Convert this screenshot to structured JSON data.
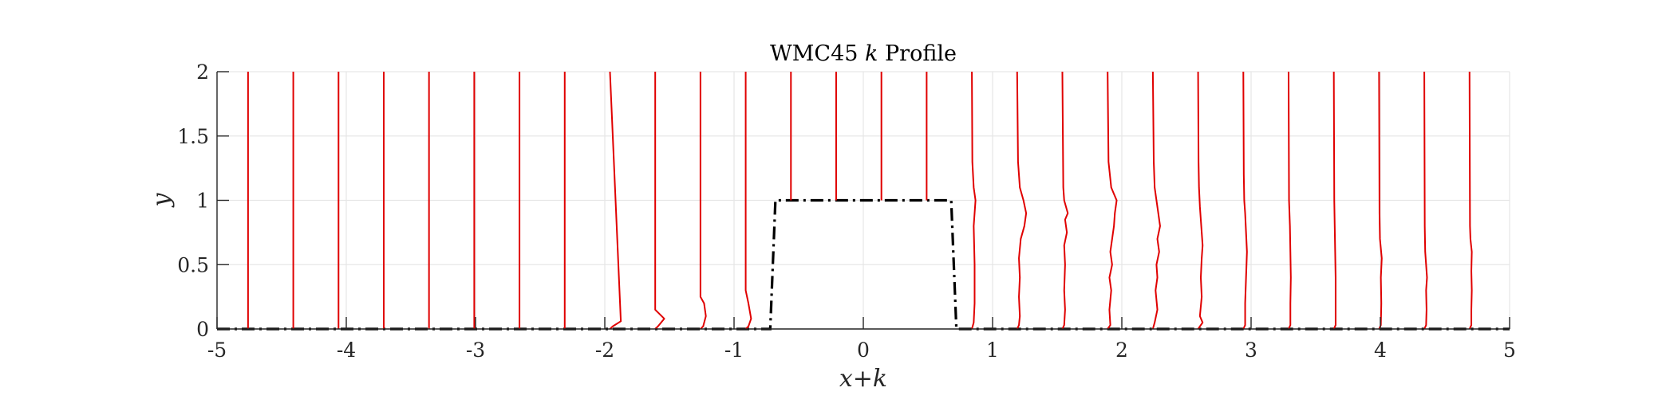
{
  "chart_data": {
    "type": "line",
    "title": "WMC45 k Profile",
    "title_parts": [
      "WMC45 ",
      "k",
      " Profile"
    ],
    "xlabel": "x+k",
    "ylabel": "y",
    "xlim": [
      -5,
      5
    ],
    "ylim": [
      0,
      2
    ],
    "xticks": [
      -5,
      -4,
      -3,
      -2,
      -1,
      0,
      1,
      2,
      3,
      4,
      5
    ],
    "yticks": [
      0,
      0.5,
      1,
      1.5,
      2
    ],
    "xtick_labels": [
      "-5",
      "-4",
      "-3",
      "-2",
      "-1",
      "0",
      "1",
      "2",
      "3",
      "4",
      "5"
    ],
    "ytick_labels": [
      "0",
      "0.5",
      "1",
      "1.5",
      "2"
    ],
    "grid": true,
    "colors": {
      "profiles": "#e00000",
      "geometry": "#000000",
      "grid": "#e6e6e6",
      "axes": "#262626"
    },
    "geometry": {
      "name": "obstacle",
      "style": "dash-dot",
      "x": [
        -5,
        -0.72,
        -0.68,
        0.68,
        0.72,
        5
      ],
      "y": [
        0,
        0,
        1,
        1,
        0,
        0
      ]
    },
    "profiles": [
      {
        "x0": -4.76,
        "bottom": 0,
        "points": [
          [
            0,
            0
          ],
          [
            2,
            0
          ]
        ]
      },
      {
        "x0": -4.41,
        "bottom": 0,
        "points": [
          [
            0,
            0
          ],
          [
            2,
            0
          ]
        ]
      },
      {
        "x0": -4.06,
        "bottom": 0,
        "points": [
          [
            0,
            0
          ],
          [
            2,
            0
          ]
        ]
      },
      {
        "x0": -3.71,
        "bottom": 0,
        "points": [
          [
            0,
            0
          ],
          [
            2,
            0
          ]
        ]
      },
      {
        "x0": -3.36,
        "bottom": 0,
        "points": [
          [
            0,
            0
          ],
          [
            2,
            0
          ]
        ]
      },
      {
        "x0": -3.01,
        "bottom": 0,
        "points": [
          [
            0,
            0
          ],
          [
            2,
            0
          ]
        ]
      },
      {
        "x0": -2.66,
        "bottom": 0,
        "points": [
          [
            0,
            0
          ],
          [
            2,
            0
          ]
        ]
      },
      {
        "x0": -2.31,
        "bottom": 0,
        "points": [
          [
            0,
            0
          ],
          [
            2,
            0
          ]
        ]
      },
      {
        "x0": -1.96,
        "bottom": 0,
        "points": [
          [
            0,
            0
          ],
          [
            0.02,
            0.03
          ],
          [
            0.06,
            0.12
          ],
          [
            2,
            0
          ]
        ]
      },
      {
        "x0": -1.61,
        "bottom": 0,
        "points": [
          [
            0,
            0
          ],
          [
            0.02,
            0.03
          ],
          [
            0.08,
            0.1
          ],
          [
            0.15,
            0
          ],
          [
            2,
            0
          ]
        ]
      },
      {
        "x0": -1.26,
        "bottom": 0,
        "points": [
          [
            0,
            0
          ],
          [
            0.02,
            0.03
          ],
          [
            0.1,
            0.06
          ],
          [
            0.2,
            0.04
          ],
          [
            0.25,
            0
          ],
          [
            2,
            0
          ]
        ]
      },
      {
        "x0": -0.91,
        "bottom": 0,
        "points": [
          [
            0,
            0
          ],
          [
            0.02,
            0.03
          ],
          [
            0.08,
            0.06
          ],
          [
            0.2,
            0.03
          ],
          [
            0.3,
            0
          ],
          [
            2,
            0
          ]
        ]
      },
      {
        "x0": -0.56,
        "bottom": 1,
        "points": [
          [
            1,
            0
          ],
          [
            2,
            0
          ]
        ]
      },
      {
        "x0": -0.21,
        "bottom": 1,
        "points": [
          [
            1,
            0
          ],
          [
            2,
            0
          ]
        ]
      },
      {
        "x0": 0.14,
        "bottom": 1,
        "points": [
          [
            1,
            0
          ],
          [
            2,
            0
          ]
        ]
      },
      {
        "x0": 0.49,
        "bottom": 1,
        "points": [
          [
            1,
            0
          ],
          [
            2,
            0
          ]
        ]
      },
      {
        "x0": 0.84,
        "bottom": 0,
        "points": [
          [
            0,
            0
          ],
          [
            0.05,
            0.02
          ],
          [
            0.2,
            0.03
          ],
          [
            0.5,
            0.03
          ],
          [
            0.8,
            0.02
          ],
          [
            1.0,
            0.04
          ],
          [
            1.1,
            0.02
          ],
          [
            1.3,
            0.005
          ],
          [
            2,
            0
          ]
        ]
      },
      {
        "x0": 1.19,
        "bottom": 0,
        "points": [
          [
            0,
            0
          ],
          [
            0.03,
            0.02
          ],
          [
            0.1,
            0.03
          ],
          [
            0.25,
            0.02
          ],
          [
            0.4,
            0.03
          ],
          [
            0.55,
            0.02
          ],
          [
            0.7,
            0.04
          ],
          [
            0.8,
            0.08
          ],
          [
            0.9,
            0.1
          ],
          [
            1.0,
            0.07
          ],
          [
            1.1,
            0.03
          ],
          [
            1.3,
            0.01
          ],
          [
            2,
            0
          ]
        ]
      },
      {
        "x0": 1.54,
        "bottom": 0,
        "points": [
          [
            0,
            0
          ],
          [
            0.03,
            0.02
          ],
          [
            0.15,
            0.03
          ],
          [
            0.3,
            0.02
          ],
          [
            0.5,
            0.03
          ],
          [
            0.65,
            0.02
          ],
          [
            0.75,
            0.05
          ],
          [
            0.85,
            0.03
          ],
          [
            0.9,
            0.06
          ],
          [
            1.0,
            0.02
          ],
          [
            1.1,
            0.01
          ],
          [
            2,
            0
          ]
        ]
      },
      {
        "x0": 1.89,
        "bottom": 0,
        "points": [
          [
            0,
            0
          ],
          [
            0.03,
            0.03
          ],
          [
            0.15,
            0.02
          ],
          [
            0.3,
            0.04
          ],
          [
            0.4,
            0.02
          ],
          [
            0.5,
            0.05
          ],
          [
            0.6,
            0.03
          ],
          [
            0.7,
            0.05
          ],
          [
            0.8,
            0.07
          ],
          [
            0.9,
            0.08
          ],
          [
            1.0,
            0.1
          ],
          [
            1.1,
            0.04
          ],
          [
            1.3,
            0.01
          ],
          [
            2,
            0
          ]
        ]
      },
      {
        "x0": 2.24,
        "bottom": 0,
        "points": [
          [
            0,
            0
          ],
          [
            0.05,
            0.02
          ],
          [
            0.15,
            0.05
          ],
          [
            0.3,
            0.03
          ],
          [
            0.4,
            0.05
          ],
          [
            0.5,
            0.04
          ],
          [
            0.6,
            0.07
          ],
          [
            0.7,
            0.05
          ],
          [
            0.8,
            0.08
          ],
          [
            0.9,
            0.06
          ],
          [
            1.0,
            0.04
          ],
          [
            1.1,
            0.02
          ],
          [
            1.3,
            0.01
          ],
          [
            2,
            0
          ]
        ]
      },
      {
        "x0": 2.59,
        "bottom": 0,
        "points": [
          [
            0,
            0
          ],
          [
            0.05,
            0.05
          ],
          [
            0.1,
            0.02
          ],
          [
            0.25,
            0.04
          ],
          [
            0.4,
            0.03
          ],
          [
            0.55,
            0.04
          ],
          [
            0.65,
            0.05
          ],
          [
            0.75,
            0.04
          ],
          [
            0.85,
            0.03
          ],
          [
            0.95,
            0.02
          ],
          [
            1.1,
            0.01
          ],
          [
            1.3,
            0.005
          ],
          [
            2,
            0
          ]
        ]
      },
      {
        "x0": 2.94,
        "bottom": 0,
        "points": [
          [
            0,
            0
          ],
          [
            0.03,
            0.02
          ],
          [
            0.2,
            0.02
          ],
          [
            0.4,
            0.03
          ],
          [
            0.6,
            0.04
          ],
          [
            0.75,
            0.03
          ],
          [
            0.9,
            0.02
          ],
          [
            1.0,
            0.01
          ],
          [
            1.2,
            0.005
          ],
          [
            2,
            0
          ]
        ]
      },
      {
        "x0": 3.29,
        "bottom": 0,
        "points": [
          [
            0,
            0
          ],
          [
            0.03,
            0.02
          ],
          [
            0.2,
            0.02
          ],
          [
            0.4,
            0.025
          ],
          [
            0.6,
            0.02
          ],
          [
            0.8,
            0.015
          ],
          [
            1.0,
            0.005
          ],
          [
            2,
            0
          ]
        ]
      },
      {
        "x0": 3.64,
        "bottom": 0,
        "points": [
          [
            0,
            0
          ],
          [
            0.03,
            0.02
          ],
          [
            0.2,
            0.02
          ],
          [
            0.4,
            0.02
          ],
          [
            0.6,
            0.015
          ],
          [
            0.8,
            0.01
          ],
          [
            1.0,
            0.005
          ],
          [
            2,
            0
          ]
        ]
      },
      {
        "x0": 3.99,
        "bottom": 0,
        "points": [
          [
            0,
            0
          ],
          [
            0.03,
            0.02
          ],
          [
            0.2,
            0.025
          ],
          [
            0.4,
            0.02
          ],
          [
            0.55,
            0.03
          ],
          [
            0.7,
            0.01
          ],
          [
            0.9,
            0.005
          ],
          [
            2,
            0
          ]
        ]
      },
      {
        "x0": 4.34,
        "bottom": 0,
        "points": [
          [
            0,
            0
          ],
          [
            0.03,
            0.02
          ],
          [
            0.15,
            0.025
          ],
          [
            0.3,
            0.02
          ],
          [
            0.4,
            0.03
          ],
          [
            0.5,
            0.02
          ],
          [
            0.6,
            0.01
          ],
          [
            0.8,
            0.005
          ],
          [
            2,
            0
          ]
        ]
      },
      {
        "x0": 4.69,
        "bottom": 0,
        "points": [
          [
            0,
            0
          ],
          [
            0.03,
            0.02
          ],
          [
            0.15,
            0.02
          ],
          [
            0.3,
            0.025
          ],
          [
            0.45,
            0.02
          ],
          [
            0.6,
            0.025
          ],
          [
            0.7,
            0.01
          ],
          [
            0.8,
            0.005
          ],
          [
            2,
            0
          ]
        ]
      }
    ]
  }
}
